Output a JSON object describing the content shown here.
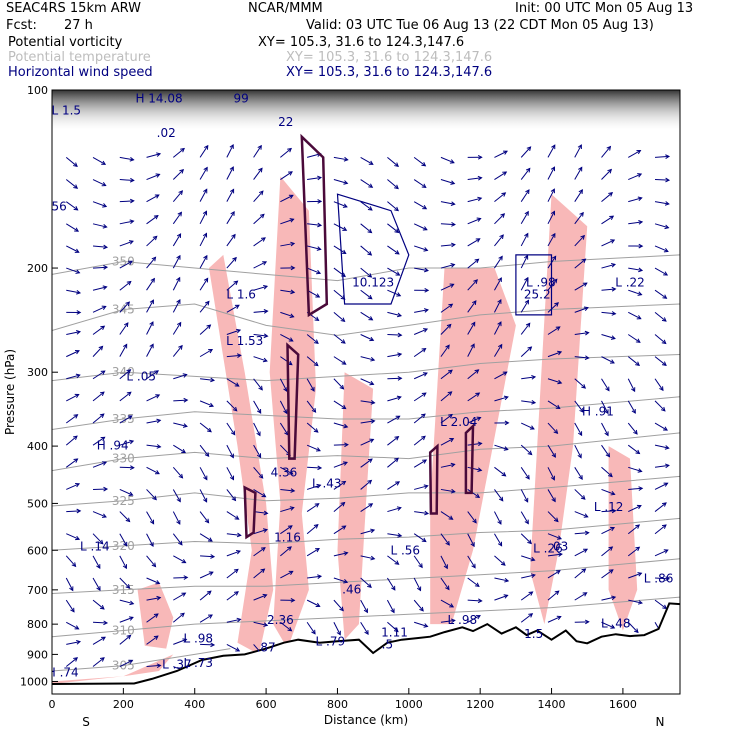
{
  "header": {
    "model": "SEAC4RS 15km ARW",
    "org": "NCAR/MMM",
    "init": "Init: 00 UTC Mon 05 Aug 13",
    "fcst_label": "Fcst:",
    "fcst_value": "27 h",
    "valid": "Valid: 03 UTC Tue 06 Aug 13 (22 CDT Mon 05 Aug 13)",
    "fields": [
      {
        "name": "Potential vorticity",
        "xy": "XY= 105.3, 31.6 to 124.3,147.6"
      },
      {
        "name": "Potential temperature",
        "xy": "XY= 105.3, 31.6 to 124.3,147.6"
      },
      {
        "name": "Horizontal wind speed",
        "xy": "XY= 105.3, 31.6 to 124.3,147.6"
      }
    ]
  },
  "colors": {
    "pv_shade": "#f8b8b8",
    "theta": "#a0a0a0",
    "wind": "#000080",
    "pv_contour": "#4a0a3a",
    "terrain": "#000000"
  },
  "chart_data": {
    "type": "cross-section",
    "xlabel": "Distance (km)",
    "ylabel": "Pressure (hPa)",
    "xlim": [
      0,
      1760
    ],
    "ylim": [
      100,
      1050
    ],
    "y_scale": "pressure (log)",
    "x_ticks": [
      0,
      200,
      400,
      600,
      800,
      1000,
      1200,
      1400,
      1600
    ],
    "y_ticks": [
      100,
      200,
      300,
      400,
      500,
      600,
      700,
      800,
      900,
      1000
    ],
    "end_labels": {
      "left": "S",
      "right": "N"
    },
    "terrain": [
      {
        "x": 0,
        "p": 1010
      },
      {
        "x": 230,
        "p": 1008
      },
      {
        "x": 280,
        "p": 990
      },
      {
        "x": 350,
        "p": 960
      },
      {
        "x": 420,
        "p": 920
      },
      {
        "x": 480,
        "p": 905
      },
      {
        "x": 540,
        "p": 900
      },
      {
        "x": 600,
        "p": 880
      },
      {
        "x": 650,
        "p": 860
      },
      {
        "x": 690,
        "p": 850
      },
      {
        "x": 750,
        "p": 860
      },
      {
        "x": 800,
        "p": 855
      },
      {
        "x": 860,
        "p": 850
      },
      {
        "x": 900,
        "p": 895
      },
      {
        "x": 940,
        "p": 860
      },
      {
        "x": 980,
        "p": 850
      },
      {
        "x": 1020,
        "p": 845
      },
      {
        "x": 1060,
        "p": 840
      },
      {
        "x": 1100,
        "p": 825
      },
      {
        "x": 1150,
        "p": 810
      },
      {
        "x": 1180,
        "p": 822
      },
      {
        "x": 1220,
        "p": 800
      },
      {
        "x": 1260,
        "p": 830
      },
      {
        "x": 1300,
        "p": 810
      },
      {
        "x": 1330,
        "p": 835
      },
      {
        "x": 1360,
        "p": 820
      },
      {
        "x": 1400,
        "p": 850
      },
      {
        "x": 1440,
        "p": 820
      },
      {
        "x": 1470,
        "p": 855
      },
      {
        "x": 1500,
        "p": 862
      },
      {
        "x": 1540,
        "p": 840
      },
      {
        "x": 1580,
        "p": 832
      },
      {
        "x": 1620,
        "p": 838
      },
      {
        "x": 1660,
        "p": 835
      },
      {
        "x": 1700,
        "p": 815
      },
      {
        "x": 1730,
        "p": 738
      },
      {
        "x": 1760,
        "p": 740
      }
    ],
    "theta_contours": [
      {
        "label": "350",
        "points": [
          [
            0,
            205
          ],
          [
            200,
            195
          ],
          [
            400,
            200
          ],
          [
            600,
            205
          ],
          [
            800,
            210
          ],
          [
            1000,
            200
          ],
          [
            1200,
            200
          ],
          [
            1400,
            195
          ],
          [
            1760,
            190
          ]
        ]
      },
      {
        "label": "345",
        "points": [
          [
            0,
            255
          ],
          [
            200,
            235
          ],
          [
            400,
            230
          ],
          [
            600,
            250
          ],
          [
            800,
            260
          ],
          [
            1000,
            250
          ],
          [
            1200,
            240
          ],
          [
            1400,
            235
          ],
          [
            1760,
            230
          ]
        ]
      },
      {
        "label": "340",
        "points": [
          [
            0,
            310
          ],
          [
            200,
            300
          ],
          [
            400,
            305
          ],
          [
            600,
            310
          ],
          [
            800,
            305
          ],
          [
            1000,
            300
          ],
          [
            1200,
            290
          ],
          [
            1400,
            285
          ],
          [
            1760,
            280
          ]
        ]
      },
      {
        "label": "335",
        "points": [
          [
            0,
            375
          ],
          [
            200,
            360
          ],
          [
            400,
            350
          ],
          [
            600,
            355
          ],
          [
            800,
            360
          ],
          [
            1000,
            360
          ],
          [
            1200,
            350
          ],
          [
            1400,
            345
          ],
          [
            1760,
            330
          ]
        ]
      },
      {
        "label": "330",
        "points": [
          [
            0,
            440
          ],
          [
            200,
            420
          ],
          [
            400,
            410
          ],
          [
            600,
            420
          ],
          [
            800,
            415
          ],
          [
            1000,
            420
          ],
          [
            1200,
            405
          ],
          [
            1400,
            400
          ],
          [
            1760,
            380
          ]
        ]
      },
      {
        "label": "325",
        "points": [
          [
            0,
            505
          ],
          [
            200,
            495
          ],
          [
            400,
            480
          ],
          [
            600,
            495
          ],
          [
            800,
            490
          ],
          [
            1000,
            480
          ],
          [
            1200,
            480
          ],
          [
            1400,
            470
          ],
          [
            1760,
            450
          ]
        ]
      },
      {
        "label": "320",
        "points": [
          [
            0,
            600
          ],
          [
            200,
            590
          ],
          [
            400,
            580
          ],
          [
            600,
            585
          ],
          [
            800,
            575
          ],
          [
            1000,
            570
          ],
          [
            1200,
            560
          ],
          [
            1400,
            555
          ],
          [
            1760,
            530
          ]
        ]
      },
      {
        "label": "315",
        "points": [
          [
            0,
            710
          ],
          [
            200,
            700
          ],
          [
            400,
            690
          ],
          [
            600,
            690
          ],
          [
            800,
            680
          ],
          [
            1000,
            670
          ],
          [
            1200,
            660
          ],
          [
            1400,
            650
          ],
          [
            1760,
            620
          ]
        ]
      },
      {
        "label": "310",
        "points": [
          [
            0,
            840
          ],
          [
            200,
            820
          ],
          [
            400,
            800
          ],
          [
            600,
            790
          ],
          [
            800,
            780
          ],
          [
            1000,
            770
          ],
          [
            1200,
            760
          ],
          [
            1400,
            750
          ],
          [
            1760,
            720
          ]
        ]
      },
      {
        "label": "305",
        "points": [
          [
            0,
            960
          ],
          [
            200,
            940
          ],
          [
            400,
            900
          ],
          [
            500,
            880
          ]
        ]
      }
    ],
    "pv_shaded_regions": [
      [
        [
          440,
          200
        ],
        [
          480,
          190
        ],
        [
          540,
          300
        ],
        [
          600,
          500
        ],
        [
          620,
          700
        ],
        [
          580,
          900
        ],
        [
          520,
          860
        ],
        [
          560,
          600
        ],
        [
          520,
          400
        ]
      ],
      [
        [
          640,
          140
        ],
        [
          720,
          160
        ],
        [
          740,
          320
        ],
        [
          700,
          520
        ],
        [
          720,
          700
        ],
        [
          660,
          880
        ],
        [
          620,
          800
        ],
        [
          640,
          500
        ],
        [
          610,
          300
        ]
      ],
      [
        [
          820,
          300
        ],
        [
          900,
          320
        ],
        [
          880,
          500
        ],
        [
          860,
          800
        ],
        [
          820,
          850
        ],
        [
          800,
          600
        ]
      ],
      [
        [
          1100,
          200
        ],
        [
          1240,
          200
        ],
        [
          1300,
          250
        ],
        [
          1180,
          600
        ],
        [
          1120,
          800
        ],
        [
          1060,
          800
        ],
        [
          1060,
          500
        ]
      ],
      [
        [
          1400,
          150
        ],
        [
          1500,
          170
        ],
        [
          1460,
          400
        ],
        [
          1420,
          600
        ],
        [
          1380,
          800
        ],
        [
          1340,
          650
        ]
      ],
      [
        [
          1560,
          400
        ],
        [
          1620,
          420
        ],
        [
          1640,
          700
        ],
        [
          1600,
          820
        ],
        [
          1560,
          700
        ]
      ],
      [
        [
          0,
          1000
        ],
        [
          200,
          980
        ],
        [
          300,
          960
        ],
        [
          340,
          900
        ],
        [
          200,
          980
        ],
        [
          0,
          1010
        ]
      ],
      [
        [
          240,
          700
        ],
        [
          300,
          680
        ],
        [
          340,
          780
        ],
        [
          320,
          880
        ],
        [
          260,
          870
        ]
      ]
    ],
    "pv_contours": [
      {
        "label": "1.5",
        "points": [
          [
            540,
            470
          ],
          [
            570,
            480
          ],
          [
            565,
            560
          ],
          [
            545,
            570
          ]
        ]
      },
      {
        "label": "1.5",
        "points": [
          [
            660,
            270
          ],
          [
            690,
            280
          ],
          [
            680,
            420
          ],
          [
            665,
            420
          ]
        ]
      },
      {
        "label": "1.5",
        "points": [
          [
            1060,
            410
          ],
          [
            1080,
            400
          ],
          [
            1078,
            520
          ],
          [
            1062,
            520
          ]
        ]
      },
      {
        "label": "1.5",
        "points": [
          [
            1160,
            380
          ],
          [
            1180,
            370
          ],
          [
            1176,
            480
          ],
          [
            1160,
            480
          ]
        ]
      },
      {
        "label": "1.5",
        "points": [
          [
            700,
            120
          ],
          [
            760,
            130
          ],
          [
            770,
            230
          ],
          [
            720,
            240
          ]
        ]
      }
    ],
    "wind_speed_contours": [
      {
        "label": "20",
        "points": [
          [
            800,
            150
          ],
          [
            950,
            160
          ],
          [
            1000,
            190
          ],
          [
            950,
            230
          ],
          [
            820,
            230
          ]
        ]
      },
      {
        "label": "25",
        "points": [
          [
            1300,
            190
          ],
          [
            1400,
            190
          ],
          [
            1400,
            240
          ],
          [
            1300,
            240
          ]
        ]
      }
    ],
    "extrema_labels": [
      {
        "type": "L",
        "value": "1.5",
        "x": 40,
        "p": 110
      },
      {
        "type": "H",
        "value": "14.08",
        "x": 300,
        "p": 105
      },
      {
        "type": "",
        "value": ".02",
        "x": 320,
        "p": 120
      },
      {
        "type": "",
        "value": "56",
        "x": 20,
        "p": 160
      },
      {
        "type": "L",
        "value": "1.6",
        "x": 530,
        "p": 225
      },
      {
        "type": "L",
        "value": "1.53",
        "x": 540,
        "p": 270
      },
      {
        "type": "L",
        "value": ".05",
        "x": 250,
        "p": 310
      },
      {
        "type": "H",
        "value": ".94",
        "x": 170,
        "p": 405
      },
      {
        "type": "",
        "value": "4.36",
        "x": 650,
        "p": 450
      },
      {
        "type": "L",
        "value": ".43",
        "x": 770,
        "p": 470
      },
      {
        "type": "L",
        "value": "2.04",
        "x": 1140,
        "p": 370
      },
      {
        "type": "H",
        "value": ".91",
        "x": 1530,
        "p": 355
      },
      {
        "type": "L",
        "value": ".12",
        "x": 1560,
        "p": 515
      },
      {
        "type": "",
        "value": "1.16",
        "x": 660,
        "p": 580
      },
      {
        "type": "L",
        "value": ".14",
        "x": 120,
        "p": 600
      },
      {
        "type": "L",
        "value": ".56",
        "x": 990,
        "p": 610
      },
      {
        "type": "L",
        "value": ".26",
        "x": 1390,
        "p": 605
      },
      {
        "type": "",
        "value": ".03",
        "x": 1420,
        "p": 600
      },
      {
        "type": "L",
        "value": ".86",
        "x": 1700,
        "p": 680
      },
      {
        "type": "",
        "value": ".46",
        "x": 840,
        "p": 710
      },
      {
        "type": "L",
        "value": ".98",
        "x": 1150,
        "p": 800
      },
      {
        "type": "",
        "value": "2.36",
        "x": 640,
        "p": 800
      },
      {
        "type": "L",
        "value": ".98",
        "x": 410,
        "p": 860
      },
      {
        "type": "",
        "value": "1.11",
        "x": 960,
        "p": 840
      },
      {
        "type": "",
        "value": "1.5",
        "x": 1350,
        "p": 845
      },
      {
        "type": "L",
        "value": ".48",
        "x": 1580,
        "p": 810
      },
      {
        "type": "L",
        "value": ".79",
        "x": 780,
        "p": 870
      },
      {
        "type": "",
        "value": ".87",
        "x": 600,
        "p": 890
      },
      {
        "type": "",
        "value": ".5",
        "x": 940,
        "p": 880
      },
      {
        "type": "L",
        "value": ".37",
        "x": 350,
        "p": 950
      },
      {
        "type": "L",
        "value": ".73",
        "x": 410,
        "p": 945
      },
      {
        "type": "H",
        "value": ".74",
        "x": 30,
        "p": 980
      },
      {
        "type": "",
        "value": "10.123",
        "x": 900,
        "p": 215
      },
      {
        "type": "L",
        "value": ".98",
        "x": 1370,
        "p": 215
      },
      {
        "type": "",
        "value": "25.2",
        "x": 1360,
        "p": 225
      },
      {
        "type": "L",
        "value": ".22",
        "x": 1620,
        "p": 215
      },
      {
        "type": "",
        "value": "99",
        "x": 530,
        "p": 105
      },
      {
        "type": "",
        "value": "22",
        "x": 655,
        "p": 115
      }
    ]
  }
}
